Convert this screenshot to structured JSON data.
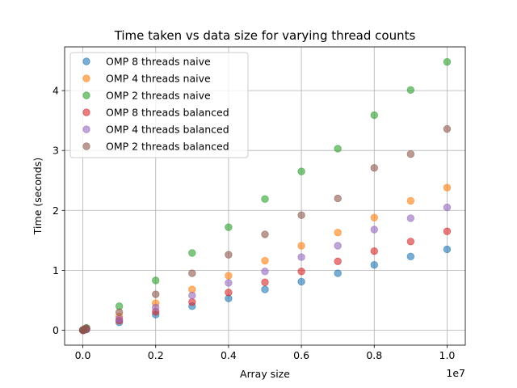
{
  "chart_data": {
    "type": "scatter",
    "title": "Time taken vs data size for varying thread counts",
    "xlabel": "Array size",
    "ylabel": "Time (seconds)",
    "x_offset_label": "1e7",
    "xlim": [
      -500000,
      10500000
    ],
    "ylim": [
      -0.25,
      4.73
    ],
    "x_ticks": [
      0,
      2000000,
      4000000,
      6000000,
      8000000,
      10000000
    ],
    "x_tick_labels": [
      "0.0",
      "0.2",
      "0.4",
      "0.6",
      "0.8",
      "1.0"
    ],
    "y_ticks": [
      0,
      1,
      2,
      3,
      4
    ],
    "y_tick_labels": [
      "0",
      "1",
      "2",
      "3",
      "4"
    ],
    "grid": true,
    "legend_position": "top-left",
    "marker_alpha": 0.6,
    "x": [
      0,
      10000,
      20000,
      50000,
      100000,
      1000000,
      2000000,
      3000000,
      4000000,
      5000000,
      6000000,
      7000000,
      8000000,
      9000000,
      10000000
    ],
    "series": [
      {
        "name": "OMP 8 threads naive",
        "color": "#1f77b4",
        "values": [
          0.0,
          0.0,
          0.0,
          0.01,
          0.01,
          0.13,
          0.26,
          0.4,
          0.53,
          0.68,
          0.81,
          0.95,
          1.09,
          1.23,
          1.35
        ]
      },
      {
        "name": "OMP 4 threads naive",
        "color": "#ff7f0e",
        "values": [
          0.0,
          0.0,
          0.0,
          0.01,
          0.02,
          0.23,
          0.45,
          0.68,
          0.91,
          1.16,
          1.41,
          1.63,
          1.88,
          2.16,
          2.38
        ]
      },
      {
        "name": "OMP 2 threads naive",
        "color": "#2ca02c",
        "values": [
          0.0,
          0.0,
          0.0,
          0.02,
          0.04,
          0.4,
          0.83,
          1.29,
          1.72,
          2.19,
          2.65,
          3.03,
          3.59,
          4.01,
          4.48
        ]
      },
      {
        "name": "OMP 8 threads balanced",
        "color": "#d62728",
        "values": [
          0.0,
          0.0,
          0.0,
          0.01,
          0.02,
          0.16,
          0.31,
          0.47,
          0.63,
          0.8,
          0.98,
          1.15,
          1.32,
          1.48,
          1.65
        ]
      },
      {
        "name": "OMP 4 threads balanced",
        "color": "#9467bd",
        "values": [
          0.0,
          0.0,
          0.0,
          0.01,
          0.02,
          0.19,
          0.38,
          0.58,
          0.79,
          0.98,
          1.22,
          1.41,
          1.68,
          1.87,
          2.05
        ]
      },
      {
        "name": "OMP 2 threads balanced",
        "color": "#8c564b",
        "values": [
          0.0,
          0.0,
          0.0,
          0.02,
          0.03,
          0.3,
          0.6,
          0.95,
          1.26,
          1.6,
          1.92,
          2.2,
          2.71,
          2.94,
          3.36
        ]
      }
    ]
  }
}
